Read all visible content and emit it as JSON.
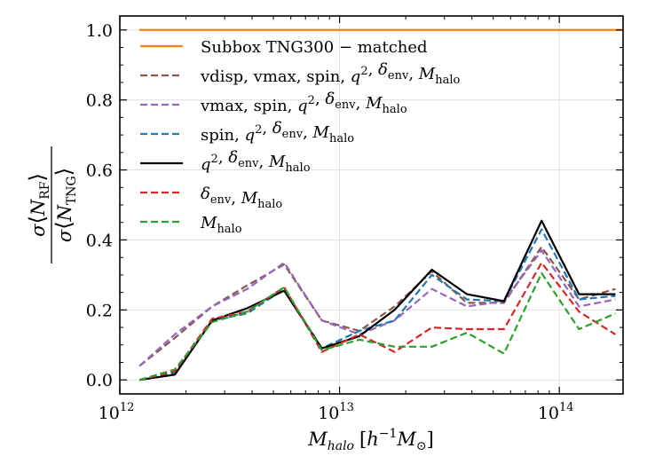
{
  "chart_data": {
    "type": "line",
    "title": "",
    "xlabel": "M_halo [h^-1 M_sun]",
    "ylabel": "σ⟨N_RF⟩ / σ⟨N_TNG⟩",
    "x_scale": "log",
    "xlim": [
      1000000000000.0,
      195000000000000.0
    ],
    "ylim": [
      -0.04,
      1.04
    ],
    "grid": true,
    "legend_position": "upper-left",
    "x": [
      1230000000000.0,
      1780000000000.0,
      2630000000000.0,
      3800000000000.0,
      5600000000000.0,
      8300000000000.0,
      12300000000000.0,
      17800000000000.0,
      26300000000000.0,
      38000000000000.0,
      56000000000000.0,
      83000000000000.0,
      123000000000000.0,
      180000000000000.0
    ],
    "x_ticks": [
      {
        "value": 1000000000000.0,
        "base": "10",
        "exp": "12"
      },
      {
        "value": 10000000000000.0,
        "base": "10",
        "exp": "13"
      },
      {
        "value": 100000000000000.0,
        "base": "10",
        "exp": "14"
      }
    ],
    "y_ticks": [
      {
        "value": 0.0,
        "label": "0.0"
      },
      {
        "value": 0.2,
        "label": "0.2"
      },
      {
        "value": 0.4,
        "label": "0.4"
      },
      {
        "value": 0.6,
        "label": "0.6"
      },
      {
        "value": 0.8,
        "label": "0.8"
      },
      {
        "value": 1.0,
        "label": "1.0"
      }
    ],
    "series": [
      {
        "name": "Subbox TNG300 − matched",
        "color": "#ff7f0e",
        "dash": "solid",
        "width": 2.2,
        "values": [
          1,
          1,
          1,
          1,
          1,
          1,
          1,
          1,
          1,
          1,
          1,
          1,
          1,
          1
        ]
      },
      {
        "name": "vdisp, vmax, spin, q², δ_env, M_halo",
        "color": "#8c564b",
        "dash": "dashed",
        "width": 2.2,
        "values": [
          0.04,
          0.12,
          0.21,
          0.27,
          0.33,
          0.17,
          0.14,
          0.21,
          0.31,
          0.22,
          0.22,
          0.38,
          0.23,
          0.26
        ]
      },
      {
        "name": "vmax, spin, q², δ_env, M_halo",
        "color": "#9467bd",
        "dash": "dashed",
        "width": 2.2,
        "values": [
          0.04,
          0.13,
          0.21,
          0.26,
          0.335,
          0.17,
          0.13,
          0.17,
          0.26,
          0.21,
          0.225,
          0.37,
          0.21,
          0.23
        ]
      },
      {
        "name": "spin, q², δ_env, M_halo",
        "color": "#1f77b4",
        "dash": "dashed",
        "width": 2.2,
        "values": [
          0.0,
          0.02,
          0.17,
          0.19,
          0.26,
          0.09,
          0.14,
          0.17,
          0.3,
          0.23,
          0.225,
          0.43,
          0.23,
          0.24
        ]
      },
      {
        "name": "q², δ_env, M_halo",
        "color": "#000000",
        "dash": "solid",
        "width": 2.2,
        "values": [
          0.0,
          0.015,
          0.17,
          0.205,
          0.255,
          0.09,
          0.125,
          0.2,
          0.315,
          0.245,
          0.225,
          0.455,
          0.245,
          0.245
        ]
      },
      {
        "name": "δ_env, M_halo",
        "color": "#d62728",
        "dash": "dashed",
        "width": 2.2,
        "values": [
          0.0,
          0.025,
          0.175,
          0.195,
          0.265,
          0.08,
          0.13,
          0.08,
          0.15,
          0.145,
          0.145,
          0.335,
          0.195,
          0.13
        ]
      },
      {
        "name": "M_halo",
        "color": "#2ca02c",
        "dash": "dashed",
        "width": 2.2,
        "values": [
          0.0,
          0.03,
          0.165,
          0.195,
          0.265,
          0.085,
          0.115,
          0.095,
          0.095,
          0.135,
          0.075,
          0.305,
          0.145,
          0.19
        ]
      }
    ],
    "legend": [
      {
        "prefix": "Subbox TNG300 − matched",
        "parts": []
      },
      {
        "prefix": "vdisp,  vmax,  spin,  ",
        "parts": [
          [
            "q",
            "2",
            ""
          ],
          [
            "δ",
            "",
            "env"
          ],
          [
            "M",
            "",
            "halo"
          ]
        ]
      },
      {
        "prefix": "vmax,  spin,  ",
        "parts": [
          [
            "q",
            "2",
            ""
          ],
          [
            "δ",
            "",
            "env"
          ],
          [
            "M",
            "",
            "halo"
          ]
        ]
      },
      {
        "prefix": "spin,  ",
        "parts": [
          [
            "q",
            "2",
            ""
          ],
          [
            "δ",
            "",
            "env"
          ],
          [
            "M",
            "",
            "halo"
          ]
        ]
      },
      {
        "prefix": "",
        "parts": [
          [
            "q",
            "2",
            ""
          ],
          [
            "δ",
            "",
            "env"
          ],
          [
            "M",
            "",
            "halo"
          ]
        ]
      },
      {
        "prefix": "",
        "parts": [
          [
            "δ",
            "",
            "env"
          ],
          [
            "M",
            "",
            "halo"
          ]
        ]
      },
      {
        "prefix": "",
        "parts": [
          [
            "M",
            "",
            "halo"
          ]
        ]
      }
    ],
    "xlabel_parts": {
      "sym": "M",
      "sub": "halo",
      "unit_open": "[",
      "h": "h",
      "h_exp": "−1",
      "msym": "M",
      "msub": "⊙",
      "unit_close": "]"
    },
    "ylabel_parts": {
      "num_sigma": "σ",
      "num_open": "⟨",
      "num_sym": "N",
      "num_sub": "RF",
      "num_close": "⟩",
      "den_sigma": "σ",
      "den_open": "⟨",
      "den_sym": "N",
      "den_sub": "TNG",
      "den_close": "⟩"
    }
  }
}
